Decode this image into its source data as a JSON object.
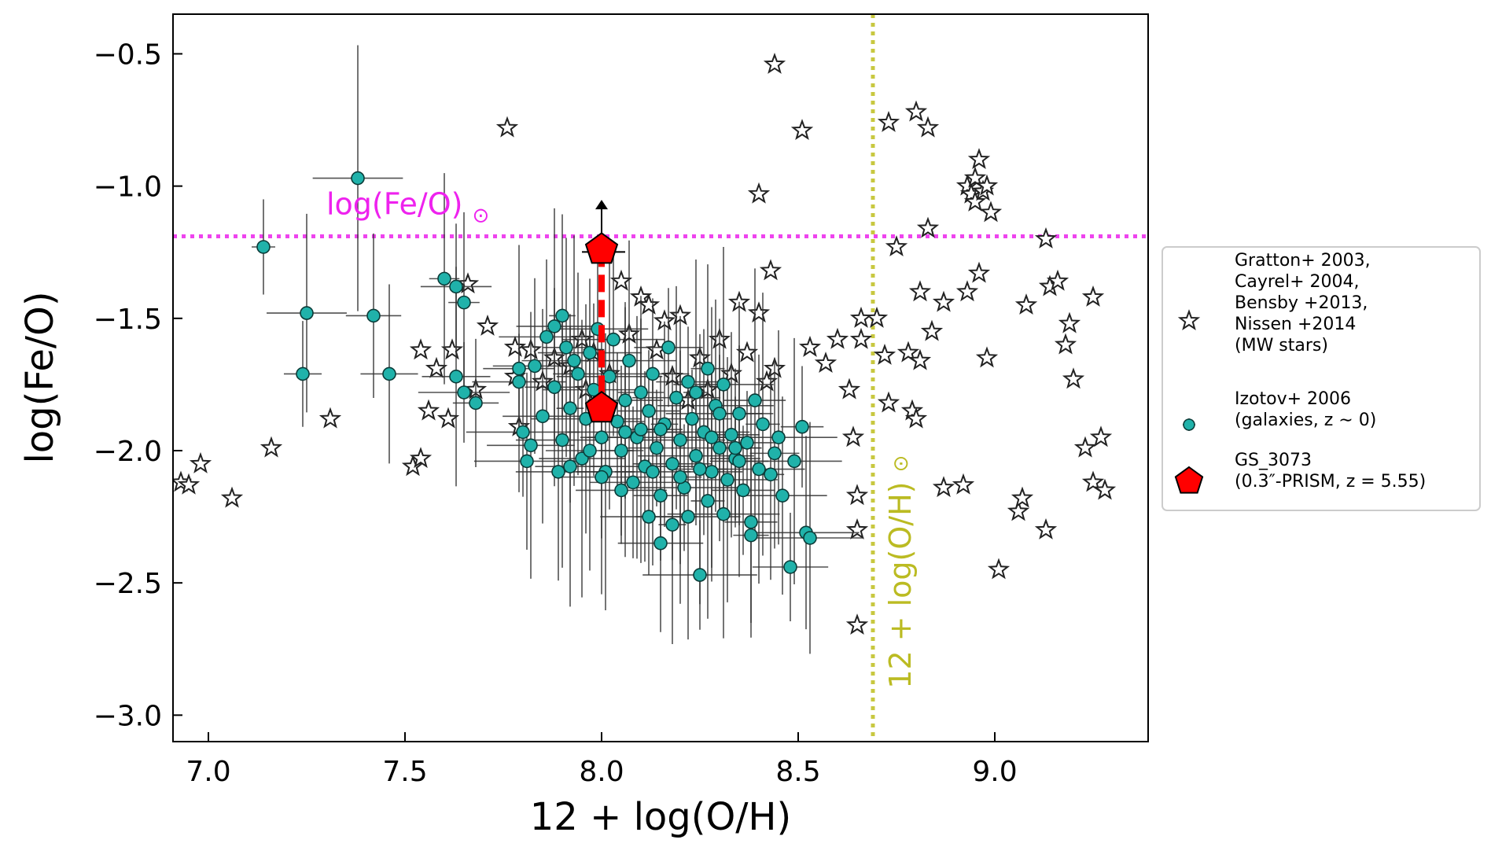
{
  "chart_data": {
    "type": "scatter",
    "xlabel": "12 + log(O/H)",
    "ylabel": "log(Fe/O)",
    "xlim": [
      6.91,
      9.39
    ],
    "ylim": [
      -3.1,
      -0.35
    ],
    "x_ticks": [
      7.0,
      7.5,
      8.0,
      8.5,
      9.0
    ],
    "x_tick_labels": [
      "7.0",
      "7.5",
      "8.0",
      "8.5",
      "9.0"
    ],
    "y_ticks": [
      -0.5,
      -1.0,
      -1.5,
      -2.0,
      -2.5,
      -3.0
    ],
    "y_tick_labels": [
      "−0.5",
      "−1.0",
      "−1.5",
      "−2.0",
      "−2.5",
      "−3.0"
    ],
    "grid": false,
    "legend_placement": "outside-right",
    "reference_lines": [
      {
        "orientation": "horizontal",
        "value": -1.19,
        "color": "#ee44ee",
        "style": "dotted",
        "label": "log(Fe/O)",
        "label_symbol": "⊙",
        "label_color": "#ee22ee"
      },
      {
        "orientation": "vertical",
        "value": 8.69,
        "color": "#c8c840",
        "style": "dotted",
        "label": "12 + log(O/H)",
        "label_symbol": "⊙",
        "label_color": "#bbbb22"
      }
    ],
    "series": [
      {
        "name": "MW stars",
        "legend_lines": [
          "Gratton+ 2003,",
          "Cayrel+ 2004,",
          "Bensby +2013,",
          "Nissen +2014",
          "(MW stars)"
        ],
        "marker": "star-open",
        "color": "#222222",
        "points": [
          [
            6.93,
            -2.12
          ],
          [
            6.95,
            -2.13
          ],
          [
            6.98,
            -2.05
          ],
          [
            7.06,
            -2.18
          ],
          [
            7.16,
            -1.99
          ],
          [
            7.31,
            -1.88
          ],
          [
            7.52,
            -2.06
          ],
          [
            7.54,
            -1.62
          ],
          [
            7.54,
            -2.03
          ],
          [
            7.56,
            -1.85
          ],
          [
            7.58,
            -1.69
          ],
          [
            7.61,
            -1.88
          ],
          [
            7.62,
            -1.62
          ],
          [
            7.66,
            -1.37
          ],
          [
            7.68,
            -1.77
          ],
          [
            7.71,
            -1.53
          ],
          [
            7.76,
            -0.78
          ],
          [
            7.78,
            -1.61
          ],
          [
            7.78,
            -1.72
          ],
          [
            7.79,
            -1.91
          ],
          [
            7.82,
            -1.62
          ],
          [
            7.85,
            -1.74
          ],
          [
            7.88,
            -1.65
          ],
          [
            7.92,
            -1.68
          ],
          [
            7.95,
            -1.58
          ],
          [
            7.96,
            -1.77
          ],
          [
            7.98,
            -1.63
          ],
          [
            8.02,
            -1.71
          ],
          [
            8.05,
            -1.36
          ],
          [
            8.07,
            -1.56
          ],
          [
            8.1,
            -1.42
          ],
          [
            8.12,
            -1.45
          ],
          [
            8.14,
            -1.62
          ],
          [
            8.16,
            -1.51
          ],
          [
            8.18,
            -1.72
          ],
          [
            8.2,
            -1.49
          ],
          [
            8.22,
            -1.81
          ],
          [
            8.25,
            -1.65
          ],
          [
            8.27,
            -1.77
          ],
          [
            8.3,
            -1.58
          ],
          [
            8.33,
            -1.71
          ],
          [
            8.35,
            -1.44
          ],
          [
            8.37,
            -1.63
          ],
          [
            8.4,
            -1.48
          ],
          [
            8.42,
            -1.74
          ],
          [
            8.44,
            -1.69
          ],
          [
            8.4,
            -1.03
          ],
          [
            8.43,
            -1.32
          ],
          [
            8.44,
            -0.54
          ],
          [
            8.51,
            -0.79
          ],
          [
            8.53,
            -1.61
          ],
          [
            8.57,
            -1.67
          ],
          [
            8.6,
            -1.58
          ],
          [
            8.63,
            -1.77
          ],
          [
            8.64,
            -1.95
          ],
          [
            8.65,
            -2.17
          ],
          [
            8.65,
            -2.3
          ],
          [
            8.65,
            -2.66
          ],
          [
            8.66,
            -1.5
          ],
          [
            8.66,
            -1.58
          ],
          [
            8.7,
            -1.5
          ],
          [
            8.72,
            -1.64
          ],
          [
            8.73,
            -0.76
          ],
          [
            8.73,
            -1.82
          ],
          [
            8.75,
            -1.23
          ],
          [
            8.78,
            -1.63
          ],
          [
            8.79,
            -1.85
          ],
          [
            8.8,
            -0.72
          ],
          [
            8.8,
            -1.88
          ],
          [
            8.81,
            -1.66
          ],
          [
            8.81,
            -1.4
          ],
          [
            8.83,
            -0.78
          ],
          [
            8.83,
            -1.16
          ],
          [
            8.84,
            -1.55
          ],
          [
            8.87,
            -1.44
          ],
          [
            8.87,
            -2.14
          ],
          [
            8.92,
            -2.13
          ],
          [
            8.93,
            -1.4
          ],
          [
            8.93,
            -1.0
          ],
          [
            8.94,
            -1.03
          ],
          [
            8.95,
            -1.06
          ],
          [
            8.95,
            -0.97
          ],
          [
            8.96,
            -0.9
          ],
          [
            8.96,
            -1.33
          ],
          [
            8.97,
            -1.02
          ],
          [
            8.98,
            -1.0
          ],
          [
            8.98,
            -1.65
          ],
          [
            8.99,
            -1.1
          ],
          [
            9.01,
            -2.45
          ],
          [
            9.06,
            -2.23
          ],
          [
            9.07,
            -2.18
          ],
          [
            9.08,
            -1.45
          ],
          [
            9.13,
            -1.2
          ],
          [
            9.13,
            -2.3
          ],
          [
            9.14,
            -1.38
          ],
          [
            9.16,
            -1.36
          ],
          [
            9.18,
            -1.6
          ],
          [
            9.19,
            -1.52
          ],
          [
            9.2,
            -1.73
          ],
          [
            9.23,
            -1.99
          ],
          [
            9.25,
            -1.42
          ],
          [
            9.25,
            -2.12
          ],
          [
            9.27,
            -1.95
          ],
          [
            9.28,
            -2.15
          ]
        ]
      },
      {
        "name": "galaxies",
        "legend_lines": [
          "Izotov+ 2006",
          "(galaxies, z ∼ 0)"
        ],
        "marker": "circle",
        "color": "#20b2aa",
        "points": [
          [
            7.14,
            -1.23
          ],
          [
            7.38,
            -0.97
          ],
          [
            7.24,
            -1.71
          ],
          [
            7.25,
            -1.48
          ],
          [
            7.42,
            -1.49
          ],
          [
            7.46,
            -1.71
          ],
          [
            7.6,
            -1.35
          ],
          [
            7.63,
            -1.38
          ],
          [
            7.63,
            -1.72
          ],
          [
            7.65,
            -1.44
          ],
          [
            7.65,
            -1.78
          ],
          [
            7.68,
            -1.82
          ],
          [
            7.79,
            -1.69
          ],
          [
            7.79,
            -1.74
          ],
          [
            7.8,
            -1.93
          ],
          [
            7.81,
            -2.04
          ],
          [
            7.82,
            -1.98
          ],
          [
            7.83,
            -1.68
          ],
          [
            7.85,
            -1.87
          ],
          [
            7.86,
            -1.57
          ],
          [
            7.88,
            -1.53
          ],
          [
            7.88,
            -1.76
          ],
          [
            7.89,
            -2.08
          ],
          [
            7.9,
            -1.49
          ],
          [
            7.9,
            -1.96
          ],
          [
            7.91,
            -1.61
          ],
          [
            7.92,
            -1.84
          ],
          [
            7.92,
            -2.06
          ],
          [
            7.93,
            -1.66
          ],
          [
            7.94,
            -1.71
          ],
          [
            7.95,
            -2.03
          ],
          [
            7.96,
            -1.88
          ],
          [
            7.97,
            -1.63
          ],
          [
            7.98,
            -1.77
          ],
          [
            7.99,
            -1.54
          ],
          [
            8.0,
            -1.95
          ],
          [
            8.01,
            -2.08
          ],
          [
            8.02,
            -1.72
          ],
          [
            8.03,
            -1.58
          ],
          [
            8.04,
            -1.89
          ],
          [
            8.05,
            -2.0
          ],
          [
            8.05,
            -2.15
          ],
          [
            8.06,
            -1.81
          ],
          [
            8.07,
            -1.66
          ],
          [
            8.08,
            -2.12
          ],
          [
            8.09,
            -1.95
          ],
          [
            8.1,
            -1.78
          ],
          [
            8.11,
            -2.06
          ],
          [
            8.12,
            -1.85
          ],
          [
            8.12,
            -2.25
          ],
          [
            8.13,
            -1.71
          ],
          [
            8.14,
            -1.99
          ],
          [
            8.15,
            -2.17
          ],
          [
            8.15,
            -2.35
          ],
          [
            8.16,
            -1.9
          ],
          [
            8.17,
            -1.61
          ],
          [
            8.18,
            -2.05
          ],
          [
            8.18,
            -2.28
          ],
          [
            8.19,
            -1.8
          ],
          [
            8.2,
            -1.96
          ],
          [
            8.21,
            -2.14
          ],
          [
            8.22,
            -1.74
          ],
          [
            8.22,
            -2.25
          ],
          [
            8.23,
            -1.88
          ],
          [
            8.24,
            -2.02
          ],
          [
            8.25,
            -2.47
          ],
          [
            8.26,
            -1.93
          ],
          [
            8.27,
            -2.19
          ],
          [
            8.27,
            -1.69
          ],
          [
            8.28,
            -2.08
          ],
          [
            8.29,
            -1.83
          ],
          [
            8.3,
            -1.99
          ],
          [
            8.31,
            -2.24
          ],
          [
            8.31,
            -1.75
          ],
          [
            8.32,
            -2.11
          ],
          [
            8.33,
            -1.94
          ],
          [
            8.34,
            -2.03
          ],
          [
            8.35,
            -1.86
          ],
          [
            8.36,
            -2.15
          ],
          [
            8.37,
            -1.97
          ],
          [
            8.38,
            -2.27
          ],
          [
            8.38,
            -2.32
          ],
          [
            8.39,
            -1.81
          ],
          [
            8.4,
            -2.07
          ],
          [
            8.41,
            -1.9
          ],
          [
            8.43,
            -2.09
          ],
          [
            8.44,
            -2.01
          ],
          [
            8.45,
            -1.95
          ],
          [
            8.46,
            -2.17
          ],
          [
            8.48,
            -2.44
          ],
          [
            8.49,
            -2.04
          ],
          [
            8.51,
            -1.91
          ],
          [
            8.52,
            -2.31
          ],
          [
            8.53,
            -2.33
          ],
          [
            7.97,
            -2.0
          ],
          [
            8.0,
            -2.1
          ],
          [
            8.1,
            -1.92
          ],
          [
            8.2,
            -2.1
          ],
          [
            8.25,
            -2.07
          ],
          [
            8.3,
            -1.86
          ],
          [
            8.35,
            -2.04
          ],
          [
            8.15,
            -1.92
          ],
          [
            8.24,
            -1.78
          ],
          [
            8.06,
            -1.93
          ],
          [
            8.13,
            -2.08
          ],
          [
            8.28,
            -1.95
          ],
          [
            8.34,
            -1.99
          ]
        ]
      },
      {
        "name": "GS_3073",
        "legend_lines": [
          "GS_3073",
          "(0.3″-PRISM, z = 5.55)"
        ],
        "marker": "pentagon",
        "color": "#ff0000",
        "points": [
          [
            8.0,
            -1.24
          ],
          [
            8.0,
            -1.84
          ]
        ],
        "note": ""
      }
    ]
  }
}
